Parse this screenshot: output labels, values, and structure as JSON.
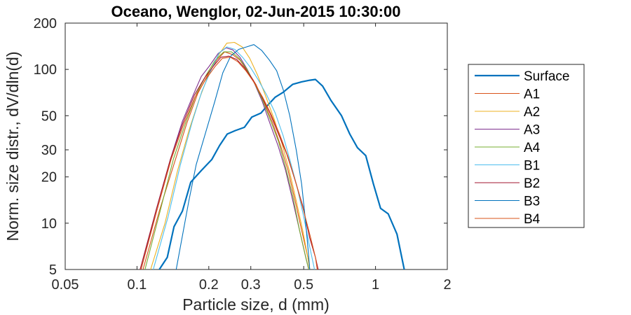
{
  "chart_data": {
    "type": "line",
    "title": "Oceano, Wenglor, 02-Jun-2015 10:30:00",
    "xlabel": "Particle size, d (mm)",
    "ylabel": "Norm. size distr., dV/dln(d)",
    "xscale": "log",
    "yscale": "log",
    "xlim": [
      0.05,
      2
    ],
    "ylim": [
      5,
      200
    ],
    "xticks": [
      0.05,
      0.1,
      0.2,
      0.3,
      0.5,
      1,
      2
    ],
    "xtick_labels": [
      "0.05",
      "0.1",
      "0.2",
      "0.3",
      "0.5",
      "1",
      "2"
    ],
    "yticks": [
      5,
      10,
      20,
      30,
      50,
      100,
      200
    ],
    "ytick_labels": [
      "5",
      "10",
      "20",
      "30",
      "50",
      "100",
      "200"
    ],
    "grid": false,
    "legend_position": "outside-right",
    "series": [
      {
        "name": "Surface",
        "color": "#0072BD",
        "width": 2.2,
        "points": [
          [
            0.124,
            5
          ],
          [
            0.134,
            6
          ],
          [
            0.143,
            9.5
          ],
          [
            0.155,
            12
          ],
          [
            0.168,
            18.5
          ],
          [
            0.186,
            22
          ],
          [
            0.206,
            26
          ],
          [
            0.222,
            32
          ],
          [
            0.239,
            38
          ],
          [
            0.258,
            40
          ],
          [
            0.282,
            42
          ],
          [
            0.303,
            49
          ],
          [
            0.331,
            52
          ],
          [
            0.355,
            59
          ],
          [
            0.38,
            66
          ],
          [
            0.41,
            71
          ],
          [
            0.45,
            80
          ],
          [
            0.49,
            83
          ],
          [
            0.53,
            85
          ],
          [
            0.56,
            86
          ],
          [
            0.6,
            78
          ],
          [
            0.65,
            63
          ],
          [
            0.72,
            50
          ],
          [
            0.78,
            38
          ],
          [
            0.84,
            31
          ],
          [
            0.91,
            27.5
          ],
          [
            0.98,
            18
          ],
          [
            1.05,
            12.5
          ],
          [
            1.13,
            11.5
          ],
          [
            1.23,
            8.5
          ],
          [
            1.32,
            5
          ]
        ]
      },
      {
        "name": "A1",
        "color": "#D95319",
        "width": 1.1,
        "points": [
          [
            0.106,
            5
          ],
          [
            0.124,
            12
          ],
          [
            0.145,
            26
          ],
          [
            0.162,
            45
          ],
          [
            0.18,
            70
          ],
          [
            0.198,
            92
          ],
          [
            0.216,
            115
          ],
          [
            0.233,
            130
          ],
          [
            0.251,
            125
          ],
          [
            0.27,
            115
          ],
          [
            0.29,
            98
          ],
          [
            0.315,
            80
          ],
          [
            0.34,
            62
          ],
          [
            0.37,
            45
          ],
          [
            0.4,
            32
          ],
          [
            0.43,
            22
          ],
          [
            0.46,
            14
          ],
          [
            0.49,
            9
          ],
          [
            0.52,
            6
          ],
          [
            0.53,
            5
          ]
        ]
      },
      {
        "name": "A2",
        "color": "#EDB120",
        "width": 1.1,
        "points": [
          [
            0.114,
            5
          ],
          [
            0.131,
            10
          ],
          [
            0.148,
            22
          ],
          [
            0.165,
            40
          ],
          [
            0.183,
            65
          ],
          [
            0.201,
            95
          ],
          [
            0.219,
            123
          ],
          [
            0.238,
            148
          ],
          [
            0.256,
            150
          ],
          [
            0.276,
            140
          ],
          [
            0.297,
            118
          ],
          [
            0.32,
            92
          ],
          [
            0.345,
            68
          ],
          [
            0.375,
            48
          ],
          [
            0.405,
            33
          ],
          [
            0.435,
            22
          ],
          [
            0.465,
            14
          ],
          [
            0.495,
            9
          ],
          [
            0.52,
            6
          ],
          [
            0.53,
            5
          ]
        ]
      },
      {
        "name": "A3",
        "color": "#7E2F8E",
        "width": 1.1,
        "points": [
          [
            0.104,
            5
          ],
          [
            0.12,
            12
          ],
          [
            0.138,
            26
          ],
          [
            0.155,
            46
          ],
          [
            0.172,
            68
          ],
          [
            0.186,
            90
          ],
          [
            0.201,
            105
          ],
          [
            0.219,
            127
          ],
          [
            0.236,
            138
          ],
          [
            0.252,
            134
          ],
          [
            0.27,
            120
          ],
          [
            0.29,
            100
          ],
          [
            0.312,
            80
          ],
          [
            0.335,
            62
          ],
          [
            0.36,
            45
          ],
          [
            0.39,
            32
          ],
          [
            0.42,
            22
          ],
          [
            0.45,
            14
          ],
          [
            0.48,
            9
          ],
          [
            0.51,
            6
          ],
          [
            0.525,
            5
          ]
        ]
      },
      {
        "name": "A4",
        "color": "#77AC30",
        "width": 1.1,
        "points": [
          [
            0.108,
            5
          ],
          [
            0.125,
            12
          ],
          [
            0.142,
            26
          ],
          [
            0.16,
            45
          ],
          [
            0.178,
            70
          ],
          [
            0.195,
            92
          ],
          [
            0.213,
            115
          ],
          [
            0.231,
            130
          ],
          [
            0.249,
            130
          ],
          [
            0.268,
            118
          ],
          [
            0.289,
            100
          ],
          [
            0.31,
            82
          ],
          [
            0.335,
            64
          ],
          [
            0.362,
            47
          ],
          [
            0.392,
            34
          ],
          [
            0.42,
            23
          ],
          [
            0.45,
            15
          ],
          [
            0.48,
            9
          ],
          [
            0.51,
            6
          ],
          [
            0.525,
            5
          ]
        ]
      },
      {
        "name": "B1",
        "color": "#4DBEEE",
        "width": 1.1,
        "points": [
          [
            0.117,
            5
          ],
          [
            0.135,
            11
          ],
          [
            0.152,
            24
          ],
          [
            0.17,
            45
          ],
          [
            0.187,
            72
          ],
          [
            0.205,
            100
          ],
          [
            0.221,
            128
          ],
          [
            0.238,
            140
          ],
          [
            0.257,
            135
          ],
          [
            0.277,
            120
          ],
          [
            0.299,
            103
          ],
          [
            0.323,
            85
          ],
          [
            0.35,
            68
          ],
          [
            0.38,
            52
          ],
          [
            0.41,
            37
          ],
          [
            0.44,
            25
          ],
          [
            0.47,
            17
          ],
          [
            0.5,
            11
          ],
          [
            0.53,
            7
          ],
          [
            0.555,
            5
          ]
        ]
      },
      {
        "name": "B2",
        "color": "#A2142F",
        "width": 1.1,
        "points": [
          [
            0.103,
            5
          ],
          [
            0.12,
            12
          ],
          [
            0.138,
            26
          ],
          [
            0.156,
            45
          ],
          [
            0.174,
            68
          ],
          [
            0.192,
            88
          ],
          [
            0.209,
            105
          ],
          [
            0.225,
            120
          ],
          [
            0.243,
            122
          ],
          [
            0.262,
            116
          ],
          [
            0.283,
            102
          ],
          [
            0.307,
            85
          ],
          [
            0.333,
            67
          ],
          [
            0.361,
            52
          ],
          [
            0.392,
            38
          ],
          [
            0.425,
            28
          ],
          [
            0.46,
            19
          ],
          [
            0.495,
            13
          ],
          [
            0.53,
            8
          ],
          [
            0.56,
            6
          ],
          [
            0.575,
            5
          ]
        ]
      },
      {
        "name": "B3",
        "color": "#0072BD",
        "width": 1.1,
        "points": [
          [
            0.146,
            5
          ],
          [
            0.165,
            14
          ],
          [
            0.177,
            24
          ],
          [
            0.195,
            40
          ],
          [
            0.212,
            62
          ],
          [
            0.229,
            95
          ],
          [
            0.247,
            122
          ],
          [
            0.267,
            135
          ],
          [
            0.288,
            140
          ],
          [
            0.309,
            145
          ],
          [
            0.333,
            133
          ],
          [
            0.359,
            115
          ],
          [
            0.385,
            98
          ],
          [
            0.41,
            74
          ],
          [
            0.437,
            50
          ],
          [
            0.465,
            30
          ],
          [
            0.49,
            18
          ],
          [
            0.51,
            10
          ],
          [
            0.525,
            6
          ],
          [
            0.53,
            5
          ]
        ]
      },
      {
        "name": "B4",
        "color": "#D95319",
        "width": 1.1,
        "points": [
          [
            0.104,
            5
          ],
          [
            0.121,
            12
          ],
          [
            0.139,
            26
          ],
          [
            0.157,
            44
          ],
          [
            0.175,
            66
          ],
          [
            0.194,
            86
          ],
          [
            0.212,
            104
          ],
          [
            0.228,
            118
          ],
          [
            0.246,
            120
          ],
          [
            0.265,
            112
          ],
          [
            0.286,
            98
          ],
          [
            0.31,
            82
          ],
          [
            0.336,
            66
          ],
          [
            0.365,
            51
          ],
          [
            0.396,
            38
          ],
          [
            0.43,
            27
          ],
          [
            0.465,
            18
          ],
          [
            0.5,
            12
          ],
          [
            0.535,
            8
          ],
          [
            0.56,
            6
          ],
          [
            0.57,
            5
          ]
        ]
      }
    ]
  }
}
